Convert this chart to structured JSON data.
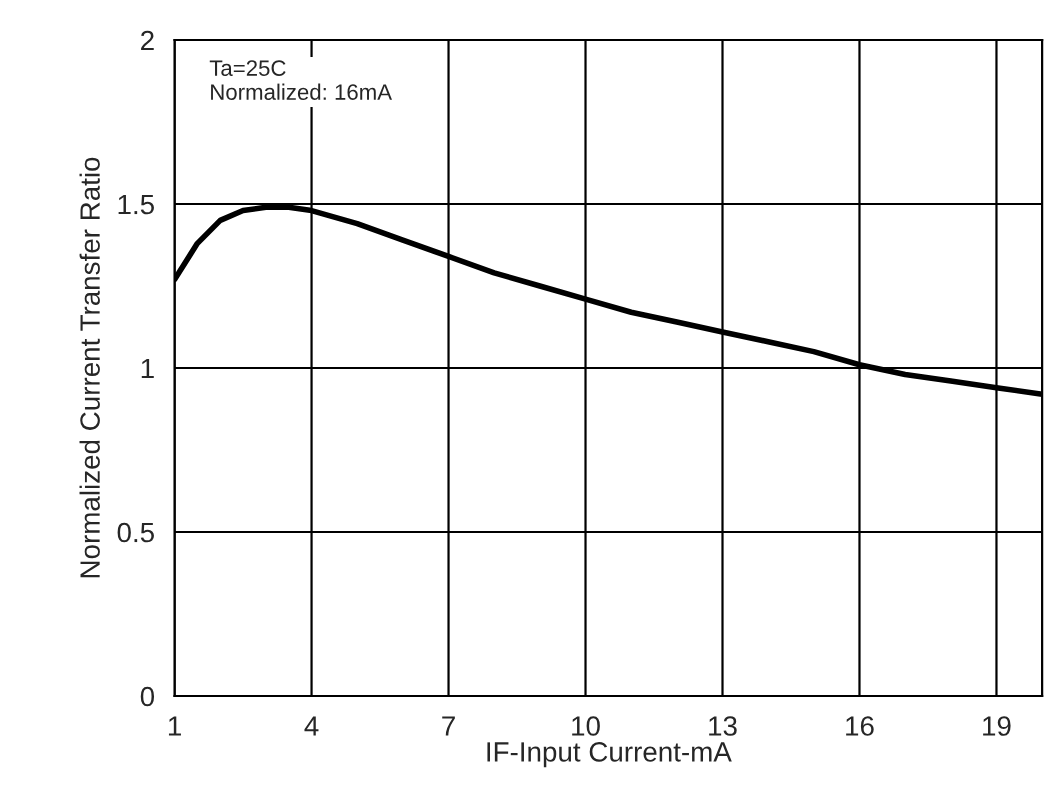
{
  "chart_data": {
    "type": "line",
    "xlabel": "IF-Input Current-mA",
    "ylabel": "Normalized Current Transfer Ratio",
    "annotations": [
      "Ta=25C\nNormalized: 16mA"
    ],
    "x": [
      1,
      1.5,
      2,
      2.5,
      3,
      3.5,
      4,
      5,
      6,
      7,
      8,
      9,
      10,
      11,
      12,
      13,
      14,
      15,
      16,
      17,
      18,
      19,
      20
    ],
    "series": [
      {
        "color": "#000000",
        "values": [
          1.27,
          1.38,
          1.45,
          1.48,
          1.49,
          1.49,
          1.48,
          1.44,
          1.39,
          1.34,
          1.29,
          1.25,
          1.21,
          1.17,
          1.14,
          1.11,
          1.08,
          1.05,
          1.01,
          0.98,
          0.96,
          0.94,
          0.92
        ]
      }
    ],
    "xlim": [
      1,
      20
    ],
    "xticks": [
      1,
      4,
      7,
      10,
      13,
      16,
      19
    ],
    "ylim": [
      0,
      2
    ],
    "yticks": [
      0,
      0.5,
      1,
      1.5,
      2
    ],
    "grid": true,
    "marker": "none",
    "line_style": "solid"
  }
}
